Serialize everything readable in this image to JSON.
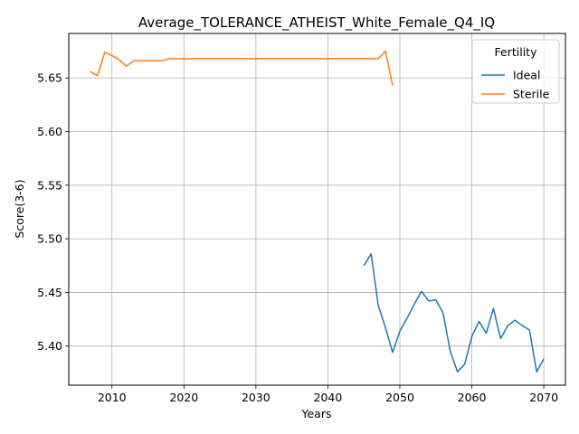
{
  "chart_data": {
    "type": "line",
    "title": "Average_TOLERANCE_ATHEIST_White_Female_Q4_IQ",
    "xlabel": "Years",
    "ylabel": "Score(3-6)",
    "xlim": [
      2004,
      2073
    ],
    "ylim": [
      5.3635,
      5.6915
    ],
    "xticks": [
      2010,
      2020,
      2030,
      2040,
      2050,
      2060,
      2070
    ],
    "yticks": [
      5.4,
      5.45,
      5.5,
      5.55,
      5.6,
      5.65
    ],
    "xtick_labels": [
      "2010",
      "2020",
      "2030",
      "2040",
      "2050",
      "2060",
      "2070"
    ],
    "ytick_labels": [
      "5.40",
      "5.45",
      "5.50",
      "5.55",
      "5.60",
      "5.65"
    ],
    "grid": true,
    "legend": {
      "title": "Fertility",
      "position": "top-right"
    },
    "series": [
      {
        "name": "Ideal",
        "color": "#1f77b4",
        "x": [
          2045,
          2046,
          2047,
          2048,
          2049,
          2050,
          2051,
          2052,
          2053,
          2054,
          2055,
          2056,
          2057,
          2058,
          2059,
          2060,
          2061,
          2062,
          2063,
          2064,
          2065,
          2066,
          2067,
          2068,
          2069,
          2070
        ],
        "y": [
          5.475,
          5.486,
          5.438,
          5.417,
          5.394,
          5.414,
          5.426,
          5.439,
          5.451,
          5.442,
          5.443,
          5.431,
          5.395,
          5.376,
          5.383,
          5.409,
          5.423,
          5.412,
          5.435,
          5.407,
          5.419,
          5.424,
          5.419,
          5.415,
          5.376,
          5.388
        ]
      },
      {
        "name": "Sterile",
        "color": "#ff7f0e",
        "x": [
          2007,
          2008,
          2009,
          2010,
          2011,
          2012,
          2013,
          2014,
          2015,
          2016,
          2017,
          2018,
          2019,
          2020,
          2025,
          2030,
          2035,
          2040,
          2045,
          2046,
          2047,
          2048,
          2049
        ],
        "y": [
          5.656,
          5.652,
          5.674,
          5.671,
          5.667,
          5.661,
          5.666,
          5.666,
          5.666,
          5.666,
          5.666,
          5.668,
          5.668,
          5.668,
          5.668,
          5.668,
          5.668,
          5.668,
          5.668,
          5.668,
          5.668,
          5.675,
          5.643
        ]
      }
    ]
  }
}
